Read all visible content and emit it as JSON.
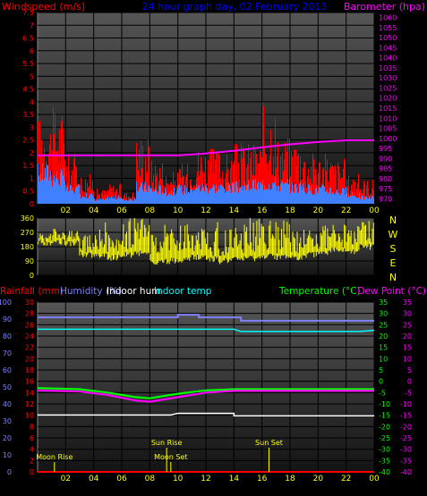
{
  "colors": {
    "rain": "#ff0000",
    "humidity": "#8080ff",
    "indoor_hum": "#ffffff",
    "indoor_temp": "#00ffff",
    "temperature": "#00ff00",
    "dew_point": "#ff00ff",
    "barometer": "#ff00ff",
    "wind_gust": "#ff0000",
    "wind_avg": "#4080ff",
    "wind_dir": "#ffff00",
    "time_label": "#ffff00",
    "title": "#0000ff",
    "astro": "#ffff00"
  },
  "chart_data": [
    {
      "type": "bar",
      "title": "24 hour graph day, 02 February 2013",
      "left_label": "Windspeed (m/s)",
      "right_label": "Barometer (hpa)",
      "x_ticks": [
        "02",
        "04",
        "06",
        "08",
        "10",
        "12",
        "14",
        "16",
        "18",
        "20",
        "22",
        "00"
      ],
      "y_ticks": [
        "0",
        "0.5",
        "1",
        "1.5",
        "2",
        "2.5",
        "3",
        "3.5",
        "4",
        "4.5",
        "5",
        "5.5",
        "6",
        "6.5",
        "7",
        "7.5"
      ],
      "ylim": [
        0,
        7.5
      ],
      "y2_ticks": [
        "970",
        "975",
        "980",
        "985",
        "990",
        "995",
        "1000",
        "1005",
        "1010",
        "1015",
        "1020",
        "1025",
        "1030",
        "1035",
        "1040",
        "1045",
        "1050",
        "1055",
        "1060"
      ],
      "y2lim": [
        967.5,
        1062.5
      ],
      "series": [
        {
          "name": "Windspeed (m/s)",
          "type": "bar",
          "hourly_max": [
            3.5,
            3.8,
            2.0,
            1.2,
            0.6,
            0.8,
            0.5,
            2.8,
            1.8,
            1.3,
            1.6,
            2.3,
            2.2,
            2.0,
            2.4,
            2.5,
            4.0,
            2.7,
            2.6,
            2.1,
            2.0,
            1.8,
            1.2,
            1.0
          ],
          "hourly_avg": [
            1.5,
            1.3,
            0.7,
            0.4,
            0.2,
            0.3,
            0.2,
            0.8,
            0.7,
            0.6,
            0.7,
            0.8,
            0.8,
            0.8,
            0.8,
            0.9,
            1.0,
            0.9,
            0.8,
            0.7,
            0.7,
            0.6,
            0.4,
            0.3
          ]
        },
        {
          "name": "Barometer (hpa)",
          "type": "line",
          "x": [
            0,
            2,
            4,
            6,
            8,
            10,
            12,
            14,
            16,
            18,
            20,
            22,
            24
          ],
          "y": [
            991.5,
            991.5,
            991.5,
            991.5,
            991.5,
            991.5,
            992.5,
            993.8,
            995.5,
            997,
            998.2,
            999,
            999
          ]
        }
      ]
    },
    {
      "type": "bar",
      "x_ticks": [
        "02",
        "04",
        "06",
        "08",
        "10",
        "12",
        "14",
        "16",
        "18",
        "20",
        "22",
        "00"
      ],
      "y_ticks": [
        "0",
        "90",
        "180",
        "270",
        "360"
      ],
      "ylim": [
        0,
        360
      ],
      "compass": [
        "N",
        "W",
        "S",
        "E",
        "N"
      ],
      "series": [
        {
          "name": "Wind direction",
          "type": "bar",
          "hourly_low": [
            205,
            210,
            200,
            130,
            120,
            110,
            130,
            140,
            80,
            90,
            100,
            110,
            100,
            90,
            100,
            105,
            120,
            115,
            110,
            130,
            140,
            160,
            150,
            180
          ],
          "hourly_high": [
            280,
            290,
            275,
            250,
            340,
            300,
            350,
            360,
            320,
            310,
            330,
            300,
            320,
            310,
            330,
            345,
            360,
            340,
            330,
            300,
            350,
            330,
            310,
            340
          ]
        }
      ]
    },
    {
      "type": "line",
      "labels": {
        "rain": "Rainfall (mm)",
        "humidity": "Humidity (%)",
        "indoor_hum": "Indoor hum",
        "indoor_temp": "Indoor temp",
        "temperature": "Temperature (°C)",
        "dew_point": "Dew Point (°C)"
      },
      "x_ticks": [
        "02",
        "04",
        "06",
        "08",
        "10",
        "12",
        "14",
        "16",
        "18",
        "20",
        "22",
        "00"
      ],
      "y_ticks_far_left": [
        "0",
        "10",
        "20",
        "30",
        "40",
        "50",
        "60",
        "70",
        "80",
        "90",
        "100"
      ],
      "y_ticks_left": [
        "0",
        "2",
        "4",
        "6",
        "8",
        "10",
        "12",
        "14",
        "16",
        "18",
        "20",
        "22",
        "24",
        "26",
        "28",
        "30"
      ],
      "y_ticks_right": [
        "-40",
        "-35",
        "-30",
        "-25",
        "-20",
        "-15",
        "-10",
        "-5",
        "0",
        "5",
        "10",
        "15",
        "20",
        "25",
        "30",
        "35"
      ],
      "humidity_lim": [
        0,
        100
      ],
      "temp_lim": [
        -40,
        35
      ],
      "series": [
        {
          "name": "Humidity (%)",
          "x": [
            0,
            10,
            10,
            11.5,
            11.5,
            14.5,
            14.5,
            24
          ],
          "y": [
            91,
            91,
            92.5,
            92.5,
            91,
            91,
            89,
            89
          ]
        },
        {
          "name": "Indoor hum",
          "x": [
            0,
            9.5,
            10,
            14,
            14,
            24
          ],
          "y": [
            33.5,
            33.5,
            34.5,
            34.5,
            33,
            33
          ]
        },
        {
          "name": "Indoor temp",
          "x": [
            0,
            14,
            14.5,
            23,
            24
          ],
          "y": [
            23,
            23,
            22,
            22,
            22.5
          ]
        },
        {
          "name": "Temperature (°C)",
          "x": [
            0,
            3,
            5,
            7,
            8,
            10,
            12,
            14,
            16,
            20,
            24
          ],
          "y": [
            -3,
            -3.5,
            -5,
            -7,
            -7.5,
            -5.5,
            -4,
            -3.5,
            -3.5,
            -3.5,
            -3.5
          ]
        },
        {
          "name": "Dew Point (°C)",
          "x": [
            0,
            3,
            5,
            7,
            8,
            10,
            12,
            14,
            16,
            20,
            24
          ],
          "y": [
            -4,
            -4.5,
            -6,
            -8.5,
            -9,
            -7,
            -5,
            -4.2,
            -4.2,
            -4.2,
            -4.2
          ]
        },
        {
          "name": "Rainfall (mm)",
          "x": [
            0,
            24
          ],
          "y": [
            0,
            0
          ]
        }
      ],
      "astro": [
        {
          "label": "Moon Rise",
          "hour": 1.2
        },
        {
          "label": "Sun Rise",
          "hour": 9.2
        },
        {
          "label": "Moon Set",
          "hour": 9.5
        },
        {
          "label": "Sun Set",
          "hour": 16.5
        }
      ]
    }
  ]
}
